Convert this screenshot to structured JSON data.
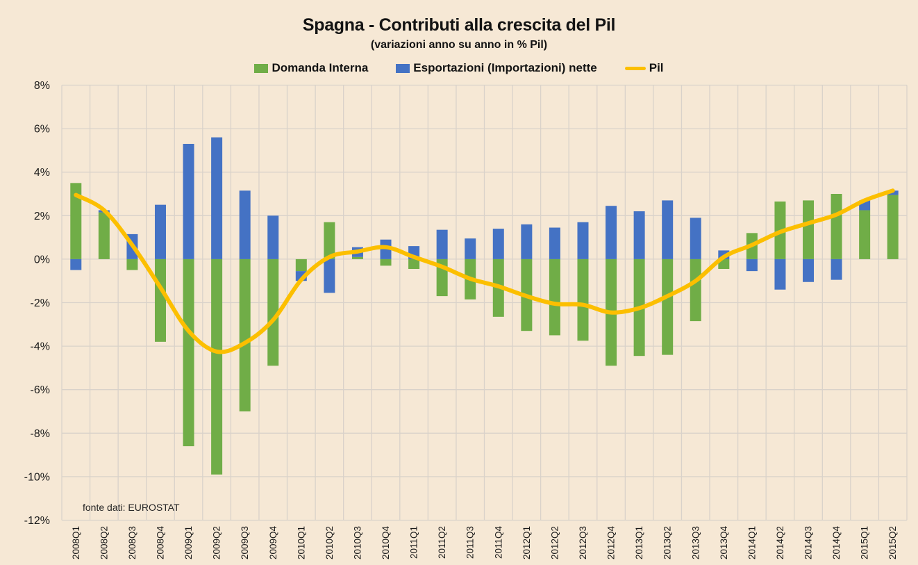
{
  "header": {
    "title": "Spagna - Contributi alla crescita del Pil",
    "subtitle": "(variazioni anno su anno in % Pil)"
  },
  "legend": [
    {
      "label": "Domanda Interna",
      "swatch": "square",
      "color": "#70AD47"
    },
    {
      "label": "Esportazioni (Importazioni) nette",
      "swatch": "square",
      "color": "#4472C4"
    },
    {
      "label": "Pil",
      "swatch": "line",
      "color": "#FCBF00"
    }
  ],
  "source_note": "fonte dati: EUROSTAT",
  "colors": {
    "background": "#F6E8D5",
    "gridline": "#D9D2CA",
    "axis_text": "#1A1A1A",
    "bar_domanda": "#70AD47",
    "bar_esportazioni": "#4472C4",
    "line_pil": "#FCBF00"
  },
  "chart_data": {
    "type": "bar",
    "subtype": "stacked bars with line overlay",
    "title": "Spagna - Contributi alla crescita del Pil",
    "subtitle": "(variazioni anno su anno in % Pil)",
    "xlabel": "",
    "ylabel": "",
    "ylim": [
      -12,
      8
    ],
    "ytick_step": 2,
    "ytick_labels": [
      "8%",
      "6%",
      "4%",
      "2%",
      "0%",
      "-2%",
      "-4%",
      "-6%",
      "-8%",
      "-10%",
      "-12%"
    ],
    "grid": true,
    "legend_position": "top",
    "categories": [
      "2008Q1",
      "2008Q2",
      "2008Q3",
      "2008Q4",
      "2009Q1",
      "2009Q2",
      "2009Q3",
      "2009Q4",
      "2010Q1",
      "2010Q2",
      "2010Q3",
      "2010Q4",
      "2011Q1",
      "2011Q2",
      "2011Q3",
      "2011Q4",
      "2012Q1",
      "2012Q2",
      "2012Q3",
      "2012Q4",
      "2013Q1",
      "2013Q2",
      "2013Q3",
      "2013Q4",
      "2014Q1",
      "2014Q2",
      "2014Q3",
      "2014Q4",
      "2015Q1",
      "2015Q2"
    ],
    "series": [
      {
        "name": "Domanda Interna",
        "type": "bar",
        "color": "#70AD47",
        "values": [
          3.5,
          2.15,
          -0.5,
          -3.8,
          -8.6,
          -9.9,
          -7.0,
          -4.9,
          -0.55,
          1.7,
          0.1,
          -0.3,
          -0.45,
          -1.7,
          -1.85,
          -2.65,
          -3.3,
          -3.5,
          -3.75,
          -4.9,
          -4.45,
          -4.4,
          -2.85,
          -0.45,
          1.2,
          2.65,
          2.7,
          3.0,
          2.25,
          2.95
        ]
      },
      {
        "name": "Esportazioni (Importazioni) nette",
        "type": "bar",
        "color": "#4472C4",
        "values": [
          -0.5,
          0.1,
          1.15,
          2.5,
          5.3,
          5.6,
          3.15,
          2.0,
          -0.45,
          -1.55,
          0.45,
          0.9,
          0.6,
          1.35,
          0.95,
          1.4,
          1.6,
          1.45,
          1.7,
          2.45,
          2.2,
          2.7,
          1.9,
          0.4,
          -0.55,
          -1.4,
          -1.05,
          -0.95,
          0.45,
          0.2
        ]
      },
      {
        "name": "Pil",
        "type": "line",
        "color": "#FCBF00",
        "values": [
          2.95,
          2.25,
          0.65,
          -1.3,
          -3.3,
          -4.25,
          -3.85,
          -2.8,
          -0.95,
          0.1,
          0.35,
          0.55,
          0.1,
          -0.35,
          -0.9,
          -1.25,
          -1.7,
          -2.05,
          -2.1,
          -2.45,
          -2.25,
          -1.7,
          -1.0,
          0.1,
          0.65,
          1.25,
          1.65,
          2.05,
          2.7,
          3.15
        ]
      }
    ]
  }
}
